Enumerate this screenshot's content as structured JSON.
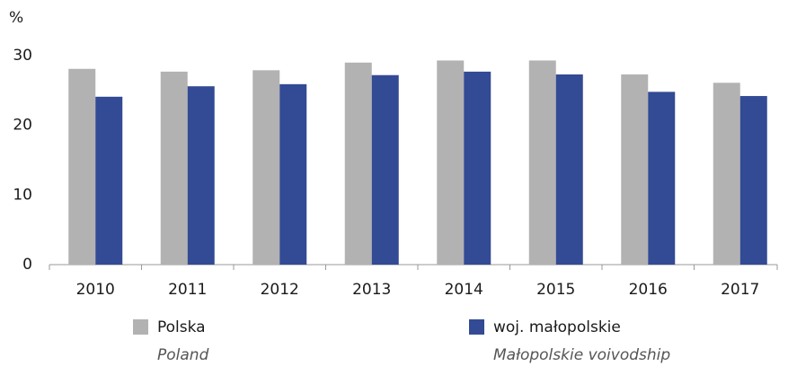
{
  "chart_data": {
    "type": "bar",
    "y_axis_label": "%",
    "categories": [
      "2010",
      "2011",
      "2012",
      "2013",
      "2014",
      "2015",
      "2016",
      "2017"
    ],
    "series": [
      {
        "name": "Polska",
        "subtitle": "Poland",
        "color": "#b2b2b2",
        "values": [
          28.1,
          27.7,
          27.9,
          29.0,
          29.3,
          29.3,
          27.3,
          26.1
        ]
      },
      {
        "name": "woj. małopolskie",
        "subtitle": "Małopolskie voivodship",
        "color": "#334a94",
        "values": [
          24.1,
          25.6,
          25.9,
          27.2,
          27.7,
          27.3,
          24.8,
          24.2
        ]
      }
    ],
    "ylim": [
      0,
      30
    ],
    "yticks": [
      0,
      10,
      20,
      30
    ],
    "grid": false
  }
}
